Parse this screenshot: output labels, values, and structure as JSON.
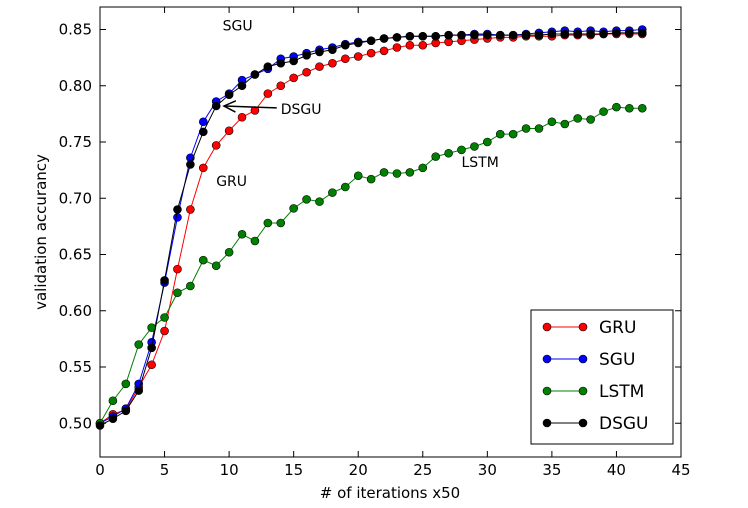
{
  "chart_data": {
    "type": "line",
    "title": "",
    "xlabel": "# of iterations x50",
    "ylabel": "validation accurancy",
    "xlim": [
      0,
      45
    ],
    "ylim": [
      0.47,
      0.87
    ],
    "xticks": [
      0,
      5,
      10,
      15,
      20,
      25,
      30,
      35,
      40,
      45
    ],
    "yticks": [
      0.5,
      0.55,
      0.6,
      0.65,
      0.7,
      0.75,
      0.8,
      0.85
    ],
    "grid": false,
    "legend_position": "lower-right",
    "x": [
      0,
      1,
      2,
      3,
      4,
      5,
      6,
      7,
      8,
      9,
      10,
      11,
      12,
      13,
      14,
      15,
      16,
      17,
      18,
      19,
      20,
      21,
      22,
      23,
      24,
      25,
      26,
      27,
      28,
      29,
      30,
      31,
      32,
      33,
      34,
      35,
      36,
      37,
      38,
      39,
      40,
      41,
      42
    ],
    "series": [
      {
        "name": "GRU",
        "color": "#ff0000",
        "values": [
          0.5,
          0.508,
          0.512,
          0.532,
          0.552,
          0.582,
          0.637,
          0.69,
          0.727,
          0.747,
          0.76,
          0.772,
          0.778,
          0.793,
          0.8,
          0.807,
          0.812,
          0.817,
          0.82,
          0.824,
          0.826,
          0.829,
          0.831,
          0.834,
          0.836,
          0.836,
          0.838,
          0.839,
          0.84,
          0.841,
          0.842,
          0.843,
          0.843,
          0.844,
          0.844,
          0.844,
          0.845,
          0.845,
          0.845,
          0.846,
          0.846,
          0.846,
          0.846
        ]
      },
      {
        "name": "SGU",
        "color": "#0000ff",
        "values": [
          0.5,
          0.506,
          0.513,
          0.535,
          0.572,
          0.625,
          0.683,
          0.736,
          0.768,
          0.786,
          0.793,
          0.805,
          0.81,
          0.815,
          0.824,
          0.826,
          0.829,
          0.832,
          0.834,
          0.837,
          0.839,
          0.84,
          0.842,
          0.843,
          0.844,
          0.844,
          0.844,
          0.845,
          0.845,
          0.846,
          0.846,
          0.845,
          0.845,
          0.846,
          0.847,
          0.848,
          0.849,
          0.848,
          0.849,
          0.848,
          0.849,
          0.849,
          0.85
        ]
      },
      {
        "name": "LSTM",
        "color": "#008000",
        "values": [
          0.5,
          0.52,
          0.535,
          0.57,
          0.585,
          0.594,
          0.616,
          0.622,
          0.645,
          0.64,
          0.652,
          0.668,
          0.662,
          0.678,
          0.678,
          0.691,
          0.699,
          0.697,
          0.705,
          0.71,
          0.72,
          0.717,
          0.723,
          0.722,
          0.723,
          0.727,
          0.737,
          0.74,
          0.743,
          0.746,
          0.75,
          0.757,
          0.757,
          0.762,
          0.762,
          0.768,
          0.766,
          0.771,
          0.77,
          0.777,
          0.781,
          0.78,
          0.78
        ]
      },
      {
        "name": "DSGU",
        "color": "#000000",
        "values": [
          0.498,
          0.504,
          0.511,
          0.529,
          0.567,
          0.627,
          0.69,
          0.73,
          0.759,
          0.782,
          0.792,
          0.8,
          0.81,
          0.817,
          0.82,
          0.822,
          0.827,
          0.83,
          0.832,
          0.836,
          0.838,
          0.84,
          0.842,
          0.843,
          0.844,
          0.844,
          0.844,
          0.845,
          0.845,
          0.845,
          0.845,
          0.845,
          0.845,
          0.845,
          0.845,
          0.846,
          0.846,
          0.846,
          0.846,
          0.846,
          0.847,
          0.847,
          0.847
        ]
      }
    ],
    "annotations": [
      {
        "text": "SGU",
        "x": 9.5,
        "y": 0.849
      },
      {
        "text": "DSGU",
        "x": 14,
        "y": 0.775,
        "arrow_to": [
          9.6,
          0.782
        ]
      },
      {
        "text": "GRU",
        "x": 9,
        "y": 0.711
      },
      {
        "text": "LSTM",
        "x": 28,
        "y": 0.728
      }
    ]
  }
}
